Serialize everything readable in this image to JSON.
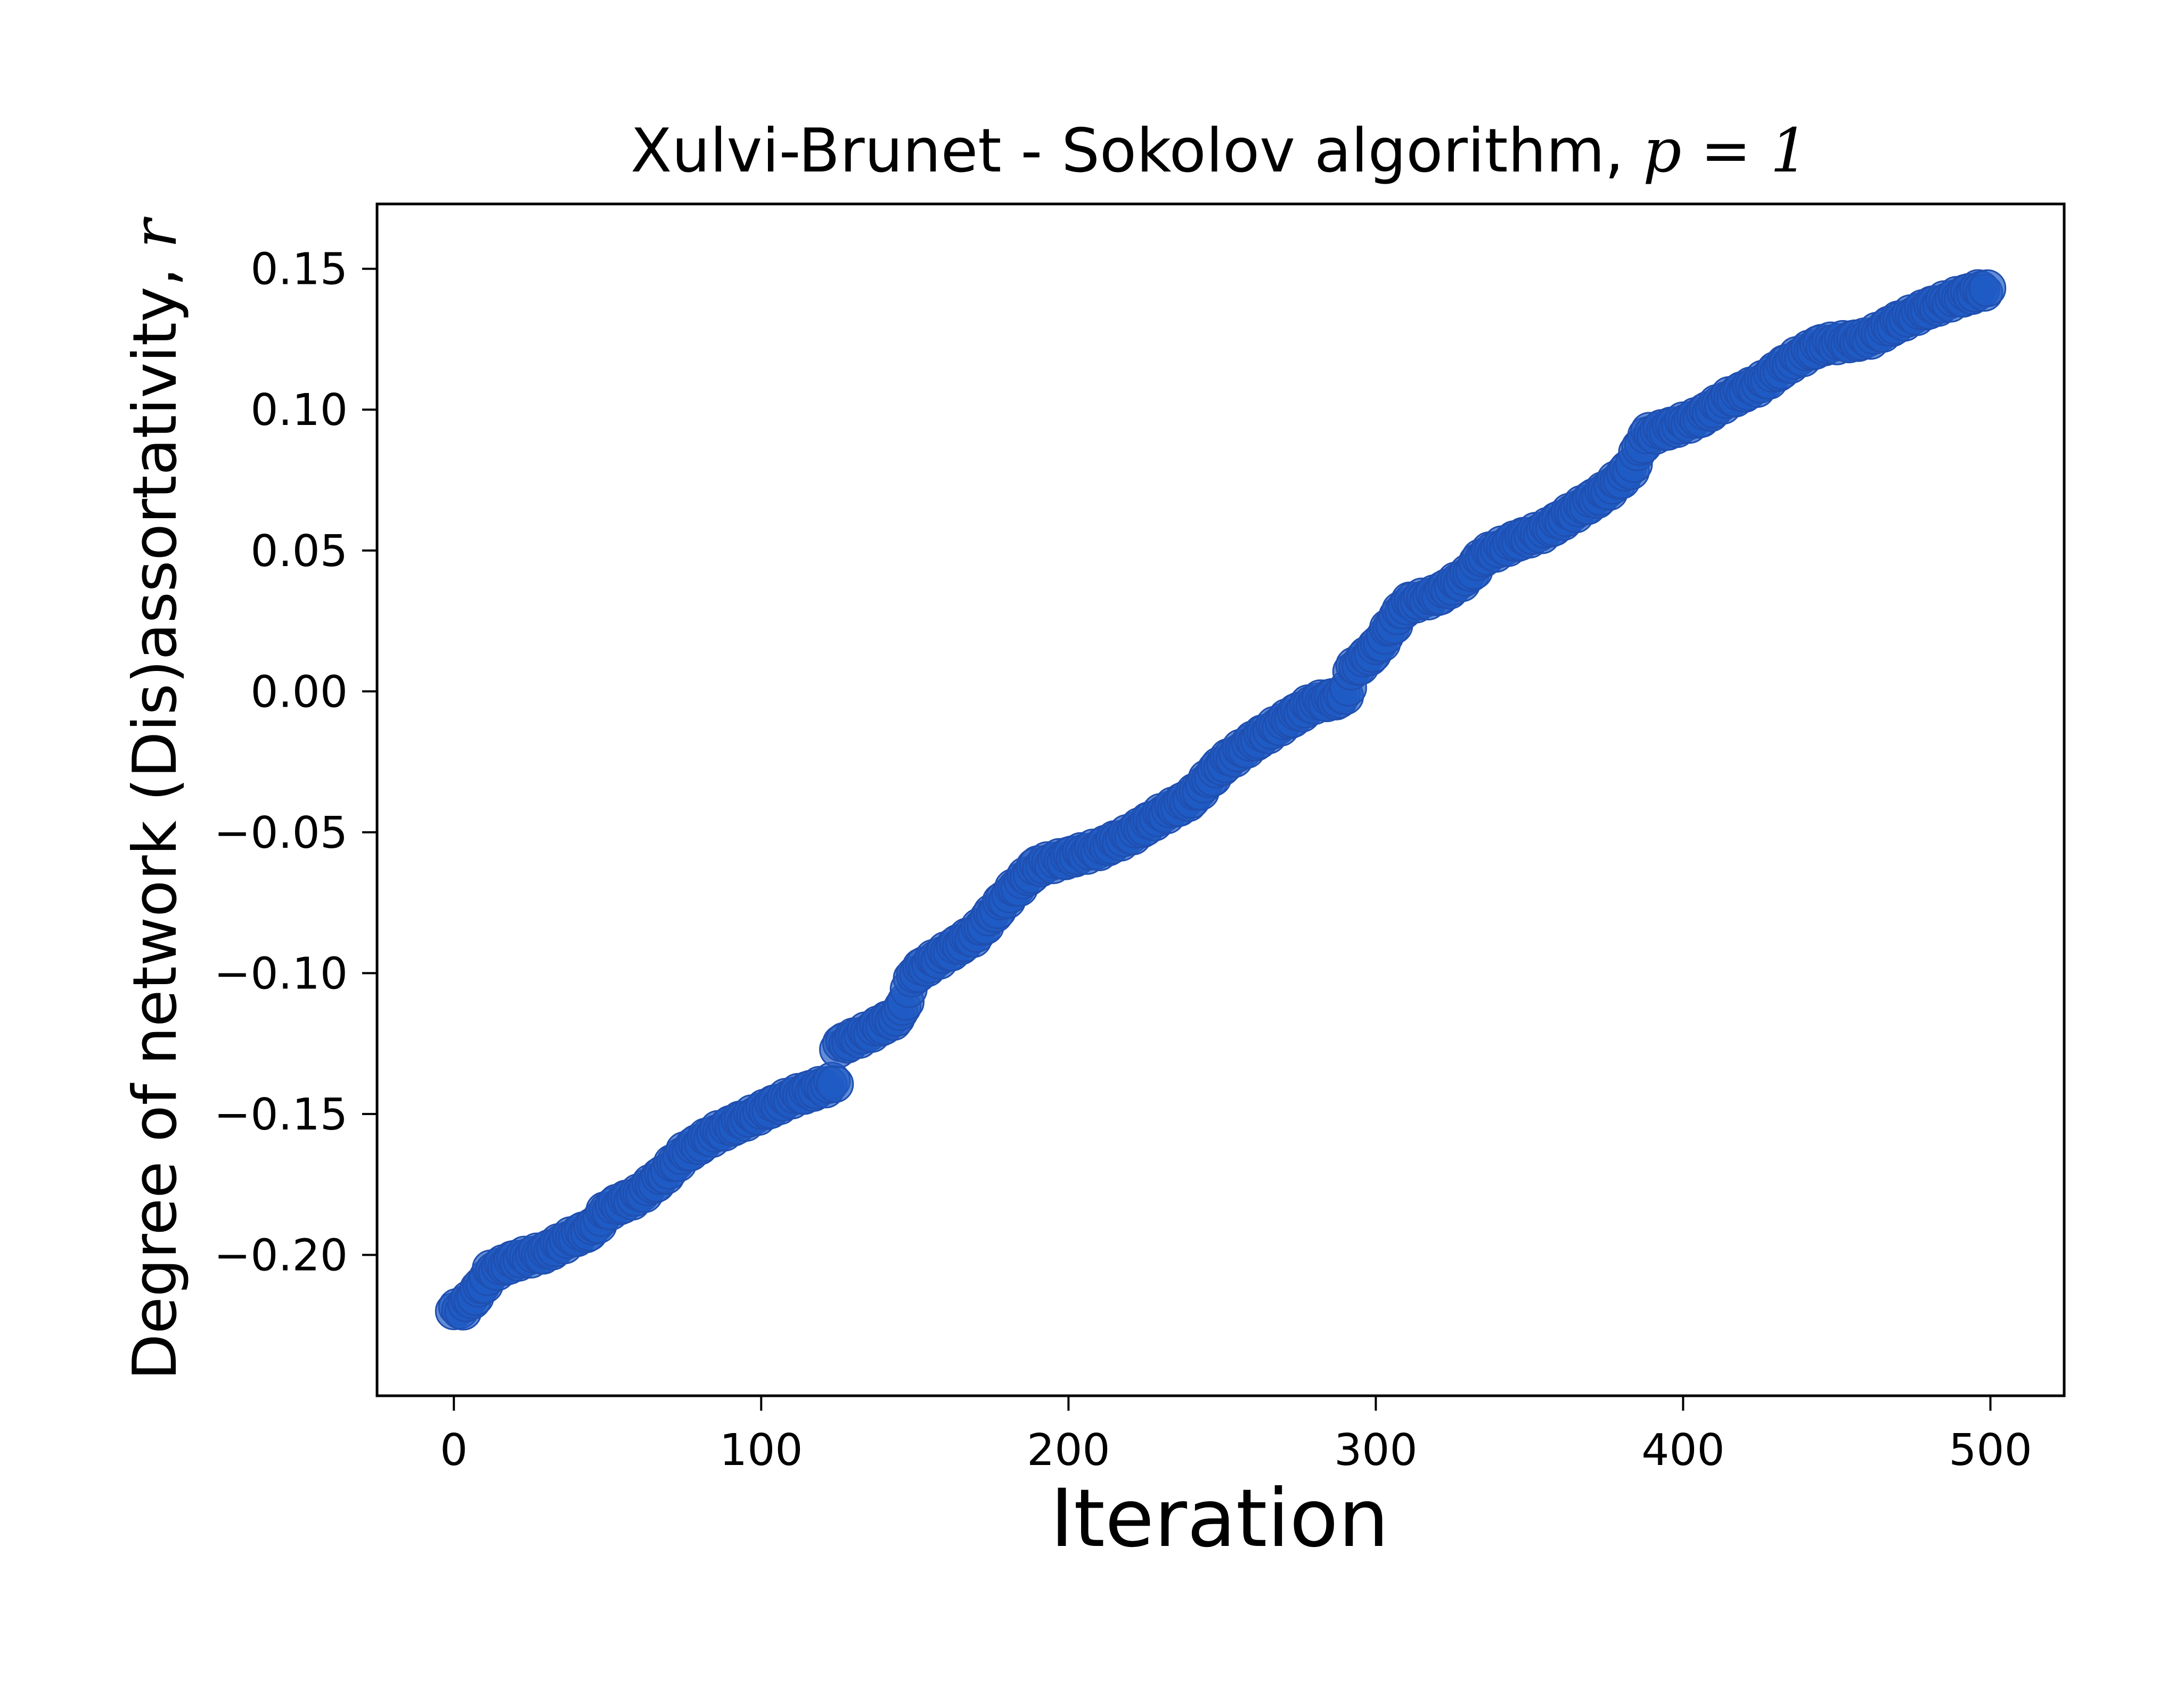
{
  "chart_data": {
    "type": "scatter",
    "title": "Xulvi-Brunet - Sokolov algorithm, ",
    "title_math": "p = 1",
    "xlabel": "Iteration",
    "ylabel": "Degree of network (Dis)assortativity, ",
    "ylabel_math": "r",
    "xlim": [
      -25,
      524
    ],
    "ylim": [
      -0.25,
      0.173
    ],
    "xticks": [
      0,
      100,
      200,
      300,
      400,
      500
    ],
    "xtick_labels": [
      "0",
      "100",
      "200",
      "300",
      "400",
      "500"
    ],
    "yticks": [
      -0.2,
      -0.15,
      -0.1,
      -0.05,
      0.0,
      0.05,
      0.1,
      0.15
    ],
    "ytick_labels": [
      "−0.20",
      "−0.15",
      "−0.10",
      "−0.05",
      "0.00",
      "0.05",
      "0.10",
      "0.15"
    ],
    "grid": false,
    "marker_color": "#1f5bc4",
    "marker_edge_color": "#2a4f9a",
    "series": [
      {
        "anchors_x": [
          0,
          3,
          8,
          12,
          20,
          30,
          40,
          45,
          50,
          60,
          68,
          75,
          85,
          95,
          110,
          124,
          125,
          135,
          145,
          150,
          160,
          170,
          180,
          190,
          200,
          210,
          220,
          230,
          240,
          250,
          260,
          270,
          280,
          290,
          292,
          300,
          305,
          310,
          320,
          330,
          335,
          345,
          355,
          365,
          375,
          383,
          388,
          395,
          405,
          415,
          425,
          435,
          445,
          460,
          470,
          480,
          490,
          499
        ],
        "anchors_y": [
          -0.22,
          -0.219,
          -0.213,
          -0.206,
          -0.202,
          -0.199,
          -0.193,
          -0.191,
          -0.184,
          -0.179,
          -0.172,
          -0.164,
          -0.157,
          -0.152,
          -0.144,
          -0.139,
          -0.126,
          -0.121,
          -0.115,
          -0.1,
          -0.093,
          -0.086,
          -0.073,
          -0.062,
          -0.059,
          -0.056,
          -0.051,
          -0.044,
          -0.038,
          -0.026,
          -0.018,
          -0.011,
          -0.004,
          -0.002,
          0.007,
          0.015,
          0.023,
          0.031,
          0.034,
          0.041,
          0.048,
          0.053,
          0.057,
          0.064,
          0.071,
          0.079,
          0.091,
          0.093,
          0.097,
          0.104,
          0.109,
          0.117,
          0.123,
          0.125,
          0.131,
          0.136,
          0.14,
          0.143
        ],
        "count": 500
      }
    ]
  }
}
